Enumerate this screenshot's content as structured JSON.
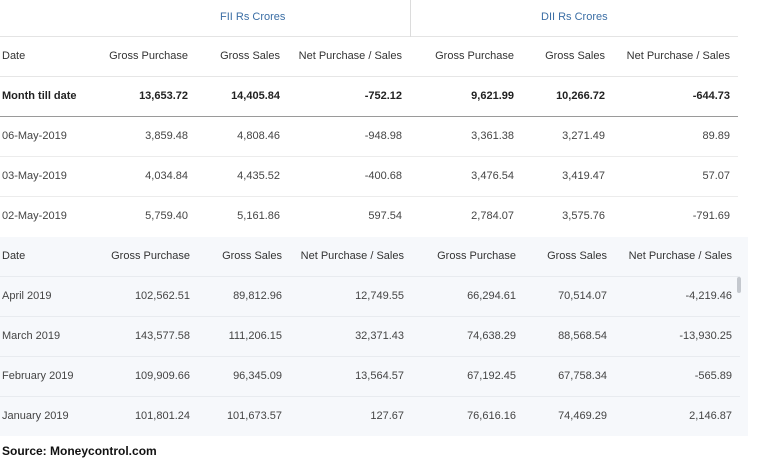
{
  "groups": {
    "fii": "FII Rs Crores",
    "dii": "DII Rs Crores"
  },
  "columns": [
    "Date",
    "Gross Purchase",
    "Gross Sales",
    "Net Purchase / Sales",
    "Gross Purchase",
    "Gross Sales",
    "Net Purchase / Sales"
  ],
  "month_till_date": {
    "label": "Month till date",
    "values": [
      "13,653.72",
      "14,405.84",
      "-752.12",
      "9,621.99",
      "10,266.72",
      "-644.73"
    ]
  },
  "daily": [
    {
      "date": "06-May-2019",
      "values": [
        "3,859.48",
        "4,808.46",
        "-948.98",
        "3,361.38",
        "3,271.49",
        "89.89"
      ]
    },
    {
      "date": "03-May-2019",
      "values": [
        "4,034.84",
        "4,435.52",
        "-400.68",
        "3,476.54",
        "3,419.47",
        "57.07"
      ]
    },
    {
      "date": "02-May-2019",
      "values": [
        "5,759.40",
        "5,161.86",
        "597.54",
        "2,784.07",
        "3,575.76",
        "-791.69"
      ]
    }
  ],
  "monthly": [
    {
      "month": "April 2019",
      "values": [
        "102,562.51",
        "89,812.96",
        "12,749.55",
        "66,294.61",
        "70,514.07",
        "-4,219.46"
      ]
    },
    {
      "month": "March 2019",
      "values": [
        "143,577.58",
        "111,206.15",
        "32,371.43",
        "74,638.29",
        "88,568.54",
        "-13,930.25"
      ]
    },
    {
      "month": "February 2019",
      "values": [
        "109,909.66",
        "96,345.09",
        "13,564.57",
        "67,192.45",
        "67,758.34",
        "-565.89"
      ]
    },
    {
      "month": "January 2019",
      "values": [
        "101,801.24",
        "101,673.57",
        "127.67",
        "76,616.16",
        "74,469.29",
        "2,146.87"
      ]
    }
  ],
  "source": "Source: Moneycontrol.com",
  "colors": {
    "link": "#3b6ea5",
    "negative": "#b03a2e",
    "positive": "#4c9a2a"
  }
}
